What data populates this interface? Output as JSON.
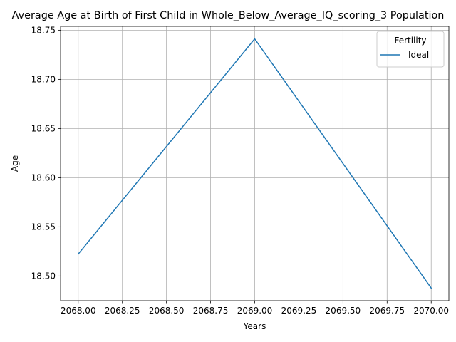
{
  "chart_data": {
    "type": "line",
    "title": "Average Age at Birth of First Child in Whole_Below_Average_IQ_scoring_3 Population",
    "xlabel": "Years",
    "ylabel": "Age",
    "x": [
      2068.0,
      2069.0,
      2070.0
    ],
    "series": [
      {
        "name": "Ideal",
        "values": [
          18.5223,
          18.7412,
          18.4877
        ],
        "color": "#1f77b4"
      }
    ],
    "xlim": [
      2067.9,
      2070.1
    ],
    "ylim": [
      18.4749,
      18.7539
    ],
    "x_ticks": [
      "2068.00",
      "2068.25",
      "2068.50",
      "2068.75",
      "2069.00",
      "2069.25",
      "2069.50",
      "2069.75",
      "2070.00"
    ],
    "y_ticks": [
      "18.50",
      "18.55",
      "18.60",
      "18.65",
      "18.70",
      "18.75"
    ],
    "grid": true,
    "legend": {
      "title": "Fertility",
      "placement": "top-right"
    }
  }
}
